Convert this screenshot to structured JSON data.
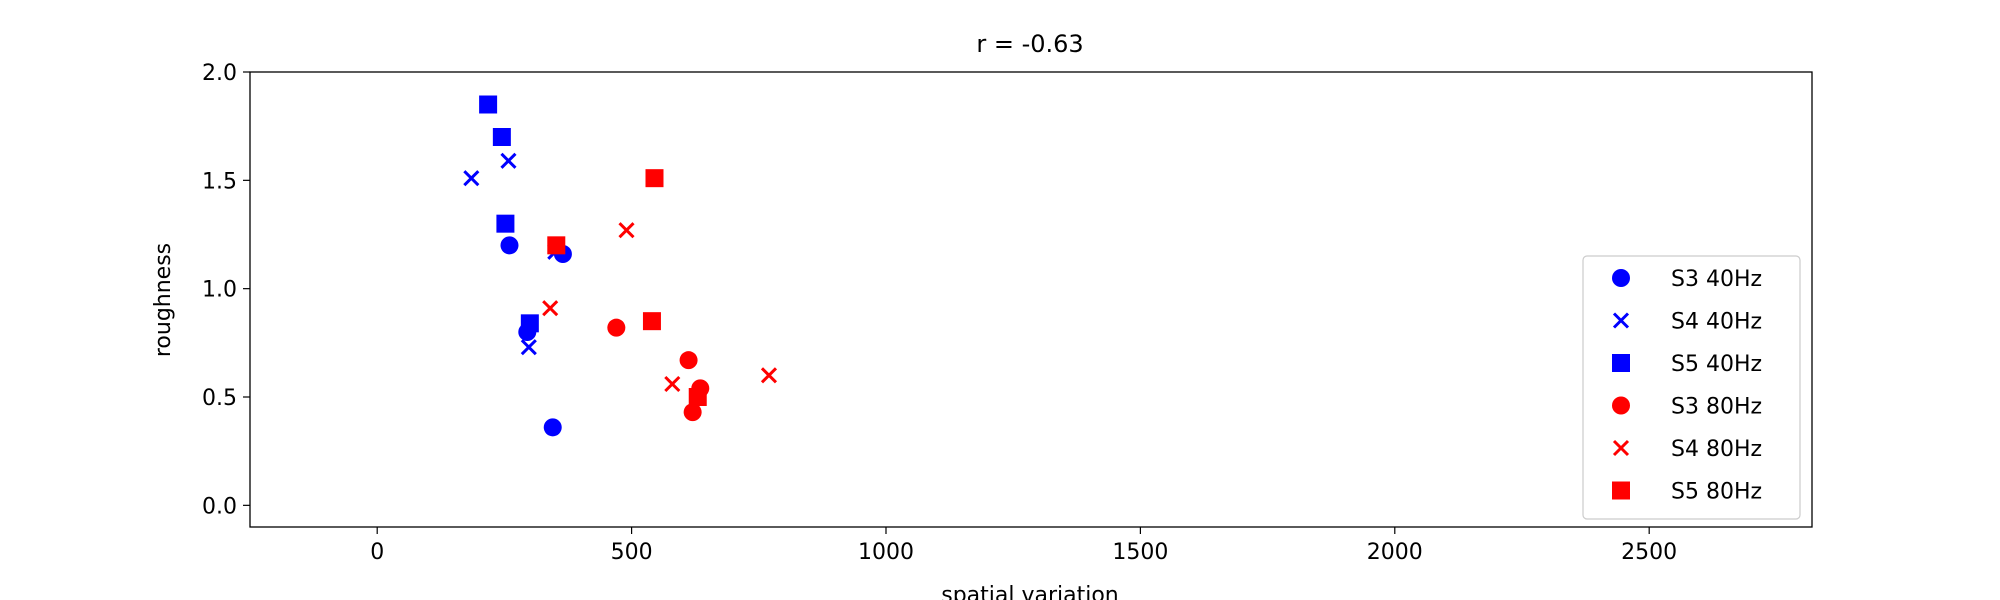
{
  "chart_data": {
    "type": "scatter",
    "title": "r = -0.63",
    "xlabel": "spatial variation",
    "ylabel": "roughness",
    "xlim": [
      -250,
      2820
    ],
    "ylim": [
      -0.1,
      2.0
    ],
    "xticks": [
      0,
      500,
      1000,
      1500,
      2000,
      2500
    ],
    "xtick_labels": [
      "0",
      "500",
      "1000",
      "1500",
      "2000",
      "2500"
    ],
    "yticks": [
      0.0,
      0.5,
      1.0,
      1.5,
      2.0
    ],
    "ytick_labels": [
      "0.0",
      "0.5",
      "1.0",
      "1.5",
      "2.0"
    ],
    "grid": false,
    "legend_position": "lower-right",
    "series": [
      {
        "name": "S3 40Hz",
        "marker": "circle",
        "color": "#0000ff",
        "points": [
          [
            260,
            1.2
          ],
          [
            365,
            1.16
          ],
          [
            295,
            0.8
          ],
          [
            345,
            0.36
          ]
        ]
      },
      {
        "name": "S4 40Hz",
        "marker": "x",
        "color": "#0000ff",
        "points": [
          [
            185,
            1.51
          ],
          [
            258,
            1.59
          ],
          [
            350,
            1.17
          ],
          [
            298,
            0.73
          ]
        ]
      },
      {
        "name": "S5 40Hz",
        "marker": "square",
        "color": "#0000ff",
        "points": [
          [
            218,
            1.85
          ],
          [
            245,
            1.7
          ],
          [
            252,
            1.3
          ],
          [
            300,
            0.84
          ]
        ]
      },
      {
        "name": "S3 80Hz",
        "marker": "circle",
        "color": "#ff0000",
        "points": [
          [
            470,
            0.82
          ],
          [
            612,
            0.67
          ],
          [
            635,
            0.54
          ],
          [
            620,
            0.43
          ]
        ]
      },
      {
        "name": "S4 80Hz",
        "marker": "x",
        "color": "#ff0000",
        "points": [
          [
            490,
            1.27
          ],
          [
            340,
            0.91
          ],
          [
            580,
            0.56
          ],
          [
            770,
            0.6
          ]
        ]
      },
      {
        "name": "S5 80Hz",
        "marker": "square",
        "color": "#ff0000",
        "points": [
          [
            545,
            1.51
          ],
          [
            352,
            1.2
          ],
          [
            540,
            0.85
          ],
          [
            630,
            0.5
          ]
        ]
      }
    ]
  }
}
